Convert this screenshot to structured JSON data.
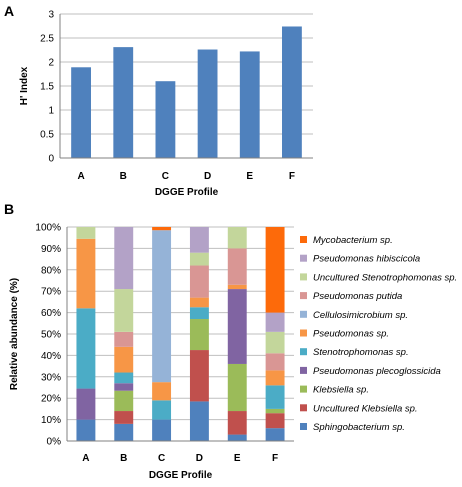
{
  "panels": {
    "a": "A",
    "b": "B"
  },
  "chart_data": [
    {
      "type": "bar",
      "title": "",
      "xlabel": "DGGE Profile",
      "ylabel": "H' Index",
      "categories": [
        "A",
        "B",
        "C",
        "D",
        "E",
        "F"
      ],
      "values": [
        1.89,
        2.31,
        1.6,
        2.26,
        2.22,
        2.74
      ],
      "ylim": [
        0,
        3
      ],
      "yticks": [
        "0",
        "0.5",
        "1",
        "1.5",
        "2",
        "2.5",
        "3"
      ],
      "grid": true,
      "color": "#4f81bd"
    },
    {
      "type": "bar",
      "stacked": true,
      "title": "",
      "xlabel": "DGGE Profile",
      "ylabel": "Relative abundance (%)",
      "categories": [
        "A",
        "B",
        "C",
        "D",
        "E",
        "F"
      ],
      "ylim": [
        0,
        100
      ],
      "yticks": [
        "0%",
        "10%",
        "20%",
        "30%",
        "40%",
        "50%",
        "60%",
        "70%",
        "80%",
        "90%",
        "100%"
      ],
      "grid": true,
      "legend": "right",
      "series": [
        {
          "name": "Sphingobacterium sp.",
          "color": "#4f81bd",
          "values": [
            10,
            8,
            10,
            18.5,
            3,
            6
          ]
        },
        {
          "name": "Uncultured Klebsiella sp.",
          "color": "#c0504d",
          "values": [
            0,
            6,
            0,
            24,
            11,
            7
          ]
        },
        {
          "name": "Klebsiella sp.",
          "color": "#9bbb59",
          "values": [
            0,
            9.5,
            0,
            14.5,
            22,
            2
          ]
        },
        {
          "name": "Pseudomonas plecoglossicida",
          "color": "#8064a2",
          "values": [
            14.5,
            3.5,
            0,
            0,
            35,
            0
          ]
        },
        {
          "name": "Stenotrophomonas sp.",
          "color": "#4bacc6",
          "values": [
            37.5,
            5,
            9,
            5.5,
            0,
            11
          ]
        },
        {
          "name": "Pseudomonas sp.",
          "color": "#f79646",
          "values": [
            32.5,
            12,
            8.5,
            4.5,
            2,
            7
          ]
        },
        {
          "name": "Cellulosimicrobium sp.",
          "color": "#95b3d7",
          "values": [
            0,
            0,
            71,
            0,
            0,
            0
          ]
        },
        {
          "name": "Pseudomonas putida",
          "color": "#d99694",
          "values": [
            0,
            7,
            0,
            15,
            17,
            8
          ]
        },
        {
          "name": "Uncultured Stenotrophomonas sp.",
          "color": "#c3d69b",
          "values": [
            5.5,
            20,
            0,
            6,
            10,
            10
          ]
        },
        {
          "name": "Pseudomonas hibiscicola",
          "color": "#b3a2c7",
          "values": [
            0,
            29,
            0,
            12,
            0,
            9
          ]
        },
        {
          "name": "Mycobacterium sp.",
          "color": "#fd6a0a",
          "values": [
            0,
            0,
            1.5,
            0,
            0,
            40
          ]
        }
      ]
    }
  ]
}
